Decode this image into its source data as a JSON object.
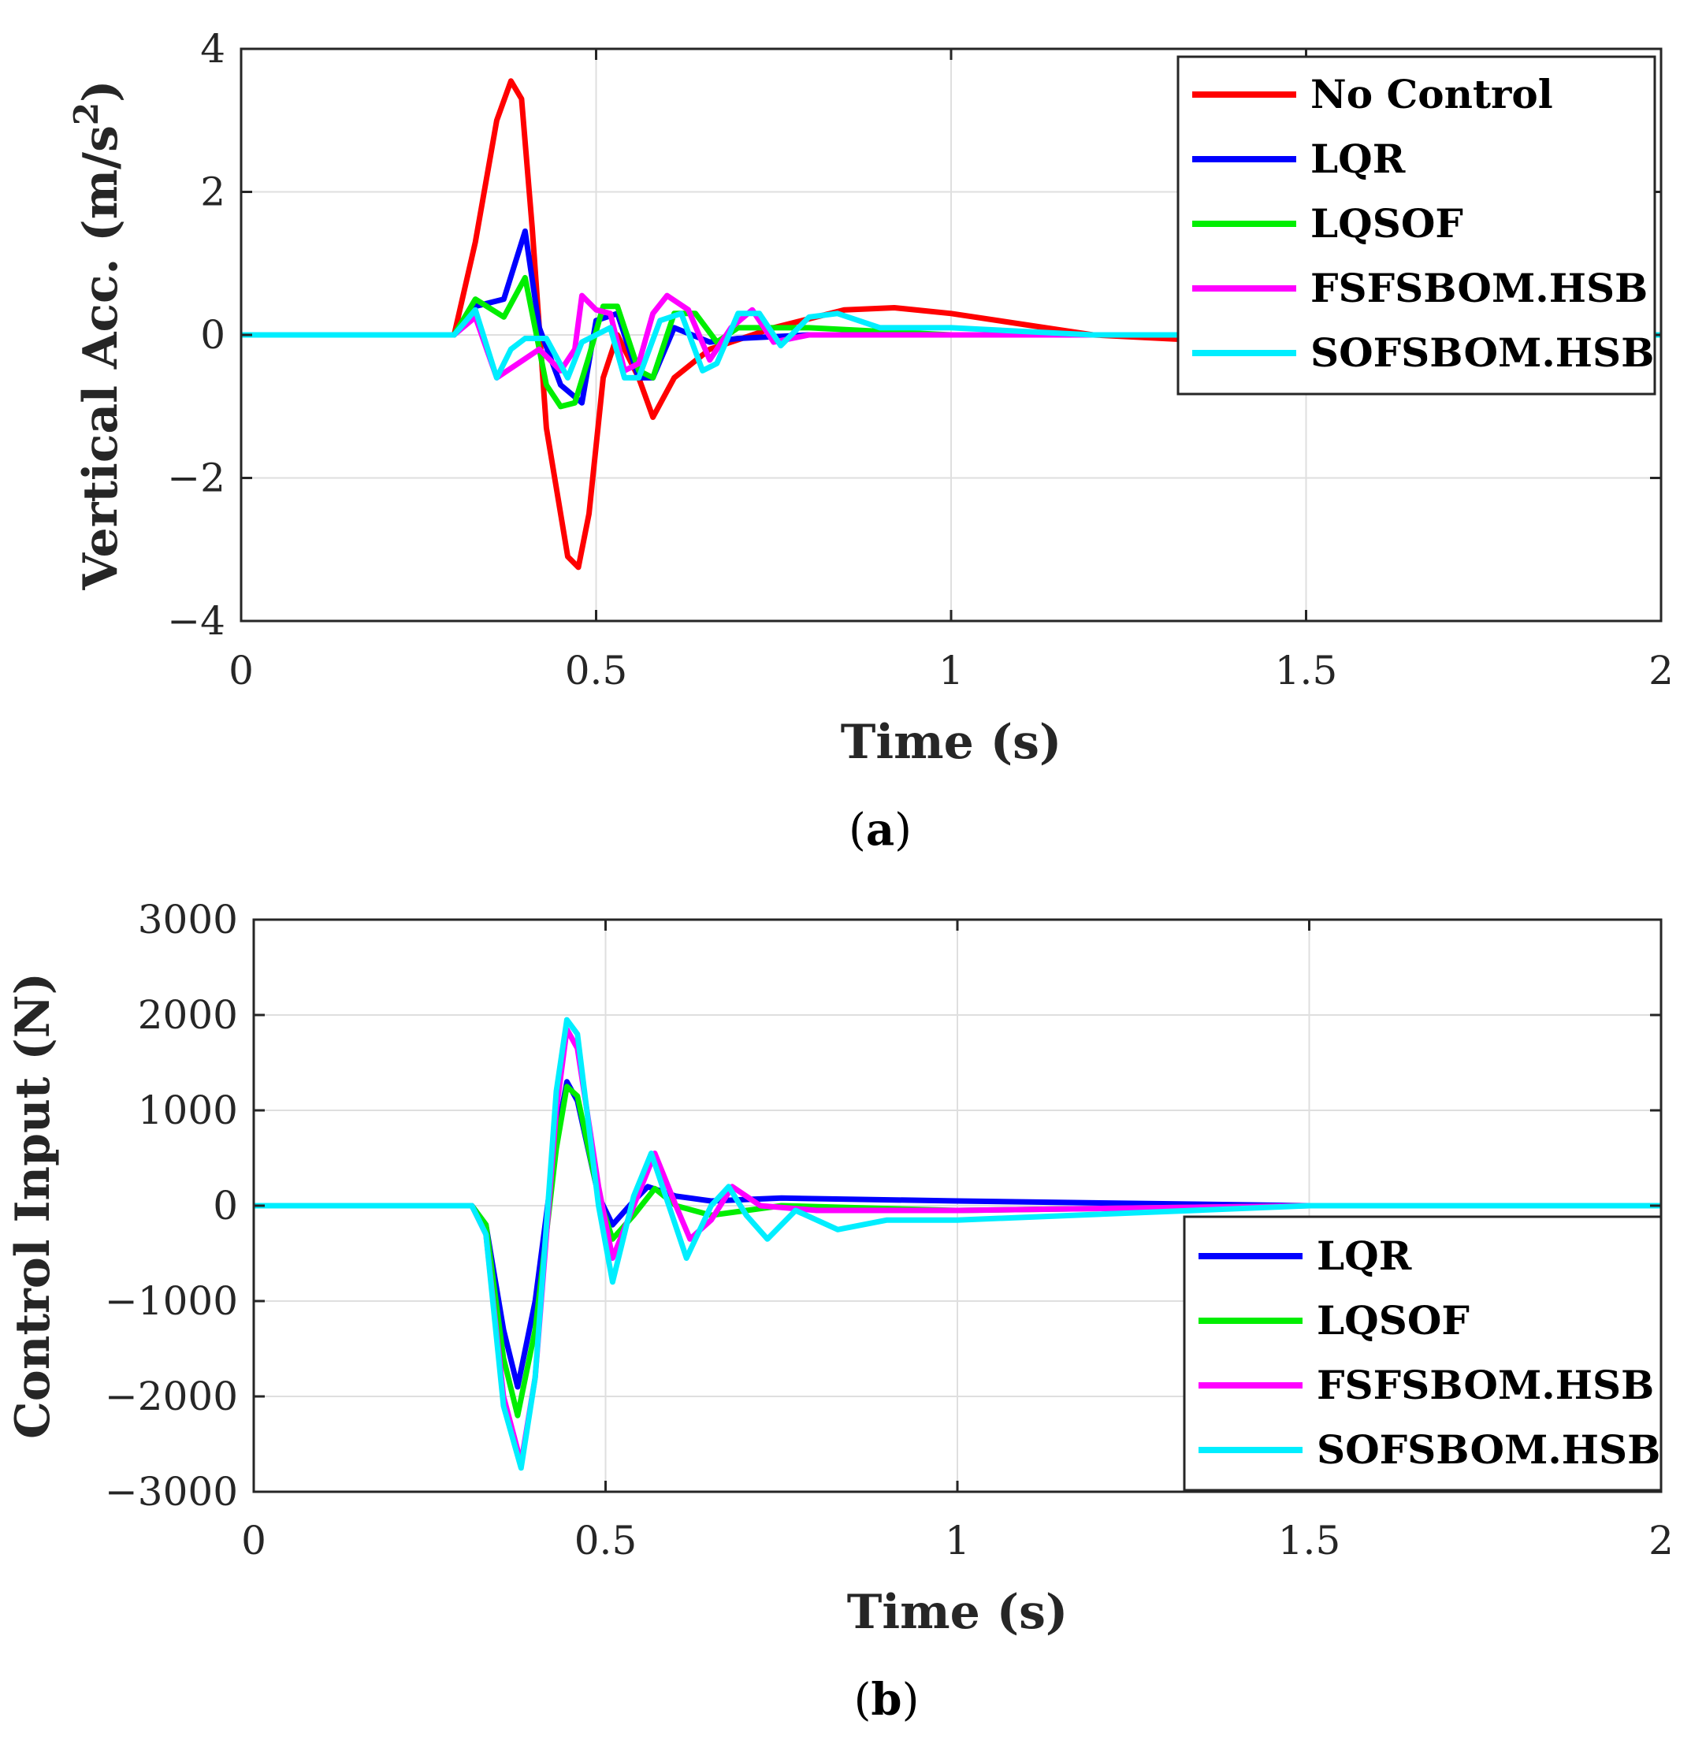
{
  "chart_data": [
    {
      "type": "line",
      "panel": "a",
      "caption": "a",
      "xlabel": "Time (s)",
      "ylabel": "Vertical Acc. (m/s",
      "ylabel_sup": "2",
      "ylabel_close": ")",
      "xlim": [
        0,
        2
      ],
      "ylim": [
        -4,
        4
      ],
      "xticks": [
        0,
        0.5,
        1,
        1.5,
        2
      ],
      "xtick_labels": [
        "0",
        "0.5",
        "1",
        "1.5",
        "2"
      ],
      "yticks": [
        -4,
        -2,
        0,
        2,
        4
      ],
      "ytick_labels": [
        "−4",
        "−2",
        "0",
        "2",
        "4"
      ],
      "grid": true,
      "legend_position": "top-right",
      "series": [
        {
          "name": "No Control",
          "color": "#ff0000",
          "x": [
            0,
            0.3,
            0.33,
            0.36,
            0.38,
            0.395,
            0.41,
            0.43,
            0.46,
            0.475,
            0.49,
            0.51,
            0.53,
            0.56,
            0.58,
            0.61,
            0.66,
            0.75,
            0.85,
            0.92,
            1.0,
            1.2,
            1.4,
            1.6,
            1.8,
            2.0
          ],
          "y": [
            0,
            0,
            1.3,
            3.0,
            3.55,
            3.3,
            1.5,
            -1.3,
            -3.1,
            -3.25,
            -2.5,
            -0.6,
            0.0,
            -0.6,
            -1.15,
            -0.6,
            -0.2,
            0.1,
            0.35,
            0.38,
            0.3,
            0.0,
            -0.1,
            -0.05,
            0.0,
            0.0
          ]
        },
        {
          "name": "LQR",
          "color": "#0000ff",
          "x": [
            0,
            0.3,
            0.33,
            0.37,
            0.4,
            0.42,
            0.45,
            0.48,
            0.5,
            0.53,
            0.56,
            0.58,
            0.61,
            0.66,
            0.7,
            0.8,
            1.0,
            1.5,
            2.0
          ],
          "y": [
            0,
            0,
            0.4,
            0.5,
            1.45,
            0.1,
            -0.7,
            -0.95,
            0.2,
            0.3,
            -0.6,
            -0.6,
            0.1,
            -0.1,
            -0.05,
            0.0,
            0.0,
            0.0,
            0.0
          ]
        },
        {
          "name": "LQSOF",
          "color": "#00ee00",
          "x": [
            0,
            0.3,
            0.33,
            0.37,
            0.4,
            0.43,
            0.45,
            0.47,
            0.49,
            0.51,
            0.53,
            0.56,
            0.58,
            0.61,
            0.64,
            0.67,
            0.7,
            0.75,
            0.8,
            1.0,
            1.5,
            2.0
          ],
          "y": [
            0,
            0,
            0.5,
            0.25,
            0.8,
            -0.7,
            -1.0,
            -0.95,
            -0.3,
            0.4,
            0.4,
            -0.5,
            -0.6,
            0.3,
            0.3,
            -0.1,
            0.1,
            0.1,
            0.1,
            0.0,
            0.0,
            0.0
          ]
        },
        {
          "name": "FSFSBOM.HSB",
          "color": "#ff00ff",
          "x": [
            0,
            0.3,
            0.33,
            0.36,
            0.39,
            0.42,
            0.45,
            0.47,
            0.48,
            0.5,
            0.52,
            0.54,
            0.56,
            0.58,
            0.6,
            0.63,
            0.66,
            0.69,
            0.72,
            0.75,
            0.8,
            0.9,
            1.0,
            1.5,
            2.0
          ],
          "y": [
            0,
            0,
            0.25,
            -0.6,
            -0.4,
            -0.2,
            -0.5,
            -0.2,
            0.55,
            0.35,
            0.3,
            -0.5,
            -0.4,
            0.3,
            0.55,
            0.35,
            -0.35,
            0.1,
            0.35,
            -0.1,
            0.0,
            0.0,
            0.0,
            0.0,
            0.0
          ]
        },
        {
          "name": "SOFSBOM.HSB",
          "color": "#00eeff",
          "x": [
            0,
            0.3,
            0.33,
            0.36,
            0.38,
            0.4,
            0.43,
            0.46,
            0.48,
            0.5,
            0.52,
            0.54,
            0.56,
            0.59,
            0.62,
            0.65,
            0.67,
            0.7,
            0.73,
            0.76,
            0.8,
            0.84,
            0.9,
            1.0,
            1.2,
            1.5,
            2.0
          ],
          "y": [
            0,
            0,
            0.35,
            -0.6,
            -0.2,
            -0.05,
            -0.05,
            -0.6,
            -0.1,
            0.0,
            0.1,
            -0.6,
            -0.6,
            0.2,
            0.3,
            -0.5,
            -0.4,
            0.3,
            0.3,
            -0.15,
            0.25,
            0.3,
            0.1,
            0.1,
            0.0,
            0.0,
            0.0
          ]
        }
      ]
    },
    {
      "type": "line",
      "panel": "b",
      "caption": "b",
      "xlabel": "Time (s)",
      "ylabel": "Control Input (N)",
      "xlim": [
        0,
        2
      ],
      "ylim": [
        -3000,
        3000
      ],
      "xticks": [
        0,
        0.5,
        1,
        1.5,
        2
      ],
      "xtick_labels": [
        "0",
        "0.5",
        "1",
        "1.5",
        "2"
      ],
      "yticks": [
        -3000,
        -2000,
        -1000,
        0,
        1000,
        2000,
        3000
      ],
      "ytick_labels": [
        "−3000",
        "−2000",
        "−1000",
        "0",
        "1000",
        "2000",
        "3000"
      ],
      "grid": true,
      "legend_position": "bottom-right",
      "series": [
        {
          "name": "LQR",
          "color": "#0000ff",
          "x": [
            0,
            0.31,
            0.33,
            0.355,
            0.375,
            0.4,
            0.43,
            0.445,
            0.46,
            0.49,
            0.51,
            0.54,
            0.56,
            0.6,
            0.65,
            0.75,
            1.0,
            1.5,
            2.0
          ],
          "y": [
            0,
            0,
            -200,
            -1300,
            -1900,
            -1000,
            700,
            1300,
            1100,
            100,
            -200,
            50,
            200,
            100,
            50,
            80,
            50,
            0,
            0
          ]
        },
        {
          "name": "LQSOF",
          "color": "#00ee00",
          "x": [
            0,
            0.31,
            0.33,
            0.355,
            0.375,
            0.4,
            0.43,
            0.445,
            0.46,
            0.49,
            0.51,
            0.54,
            0.57,
            0.6,
            0.65,
            0.75,
            1.0,
            1.5,
            2.0
          ],
          "y": [
            0,
            0,
            -200,
            -1600,
            -2200,
            -1300,
            600,
            1250,
            1150,
            100,
            -350,
            -100,
            180,
            0,
            -100,
            0,
            -50,
            0,
            0
          ]
        },
        {
          "name": "FSFSBOM.HSB",
          "color": "#ff00ff",
          "x": [
            0,
            0.31,
            0.33,
            0.355,
            0.38,
            0.4,
            0.43,
            0.445,
            0.46,
            0.49,
            0.51,
            0.54,
            0.57,
            0.6,
            0.62,
            0.65,
            0.68,
            0.72,
            0.8,
            1.0,
            1.5,
            2.0
          ],
          "y": [
            0,
            0,
            -300,
            -2000,
            -2700,
            -1800,
            1000,
            1850,
            1650,
            200,
            -550,
            0,
            550,
            0,
            -350,
            -150,
            200,
            0,
            -50,
            -50,
            0,
            0
          ]
        },
        {
          "name": "SOFSBOM.HSB",
          "color": "#00eeff",
          "x": [
            0,
            0.31,
            0.33,
            0.355,
            0.38,
            0.4,
            0.43,
            0.445,
            0.46,
            0.49,
            0.51,
            0.54,
            0.565,
            0.59,
            0.615,
            0.65,
            0.675,
            0.7,
            0.73,
            0.77,
            0.83,
            0.9,
            1.0,
            1.5,
            2.0
          ],
          "y": [
            0,
            0,
            -300,
            -2100,
            -2750,
            -1800,
            1200,
            1950,
            1800,
            0,
            -800,
            100,
            550,
            0,
            -550,
            0,
            200,
            -100,
            -350,
            -50,
            -250,
            -150,
            -150,
            0,
            0
          ]
        }
      ]
    }
  ]
}
